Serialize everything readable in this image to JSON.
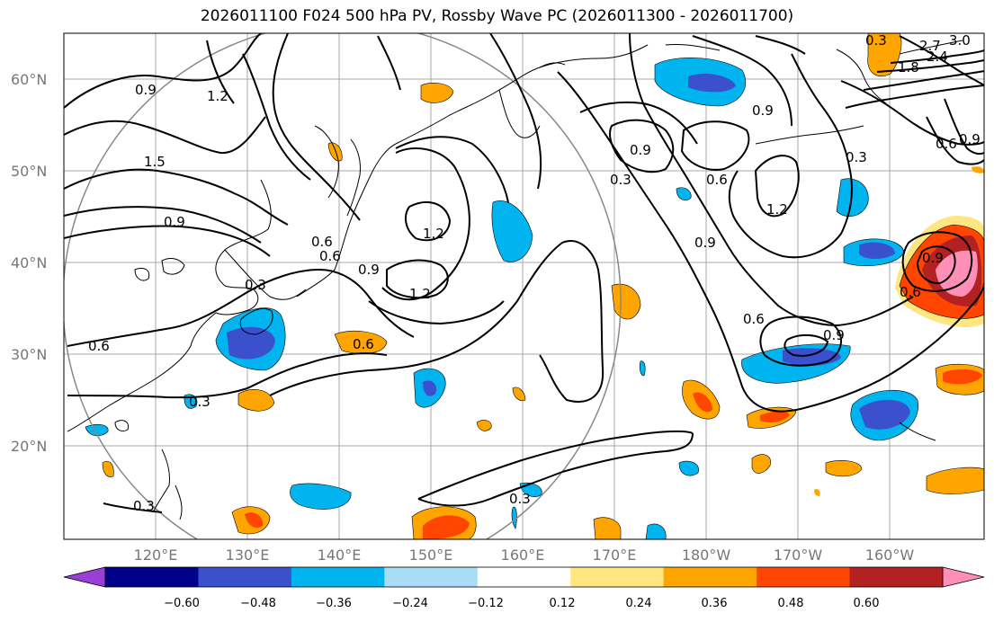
{
  "title": "2026011100 F024 500 hPa PV, Rossby Wave PC (2026011300 - 2026011700)",
  "lat_labels": [
    "60°N",
    "50°N",
    "40°N",
    "30°N",
    "20°N"
  ],
  "lon_labels": [
    "120°E",
    "130°E",
    "140°E",
    "150°E",
    "160°E",
    "170°E",
    "180°W",
    "170°W",
    "160°W"
  ],
  "colorbar": {
    "ticks": [
      "−0.60",
      "−0.48",
      "−0.36",
      "−0.24",
      "−0.12",
      "0.12",
      "0.24",
      "0.36",
      "0.48",
      "0.60"
    ],
    "colors": [
      "#9a3fd6",
      "#00008b",
      "#3a50cc",
      "#00b4f0",
      "#a9ddf5",
      "#ffffff",
      "#ffe680",
      "#ffa500",
      "#ff4500",
      "#b22222",
      "#ff8fb6"
    ]
  },
  "contour_labels": [
    "0.9",
    "1.2",
    "1.5",
    "0.9",
    "0.6",
    "0.3",
    "0.6",
    "0.3",
    "0.3",
    "0.6",
    "0.6",
    "0.9",
    "1.2",
    "1.2",
    "0.3",
    "0.9",
    "0.6",
    "0.9",
    "1.2",
    "0.9",
    "0.6",
    "0.9",
    "0.3",
    "0.6",
    "0.9",
    "0.9",
    "0.6",
    "2.7",
    "1.8",
    "2.4",
    "3.0",
    "0.3",
    "0.3"
  ]
}
